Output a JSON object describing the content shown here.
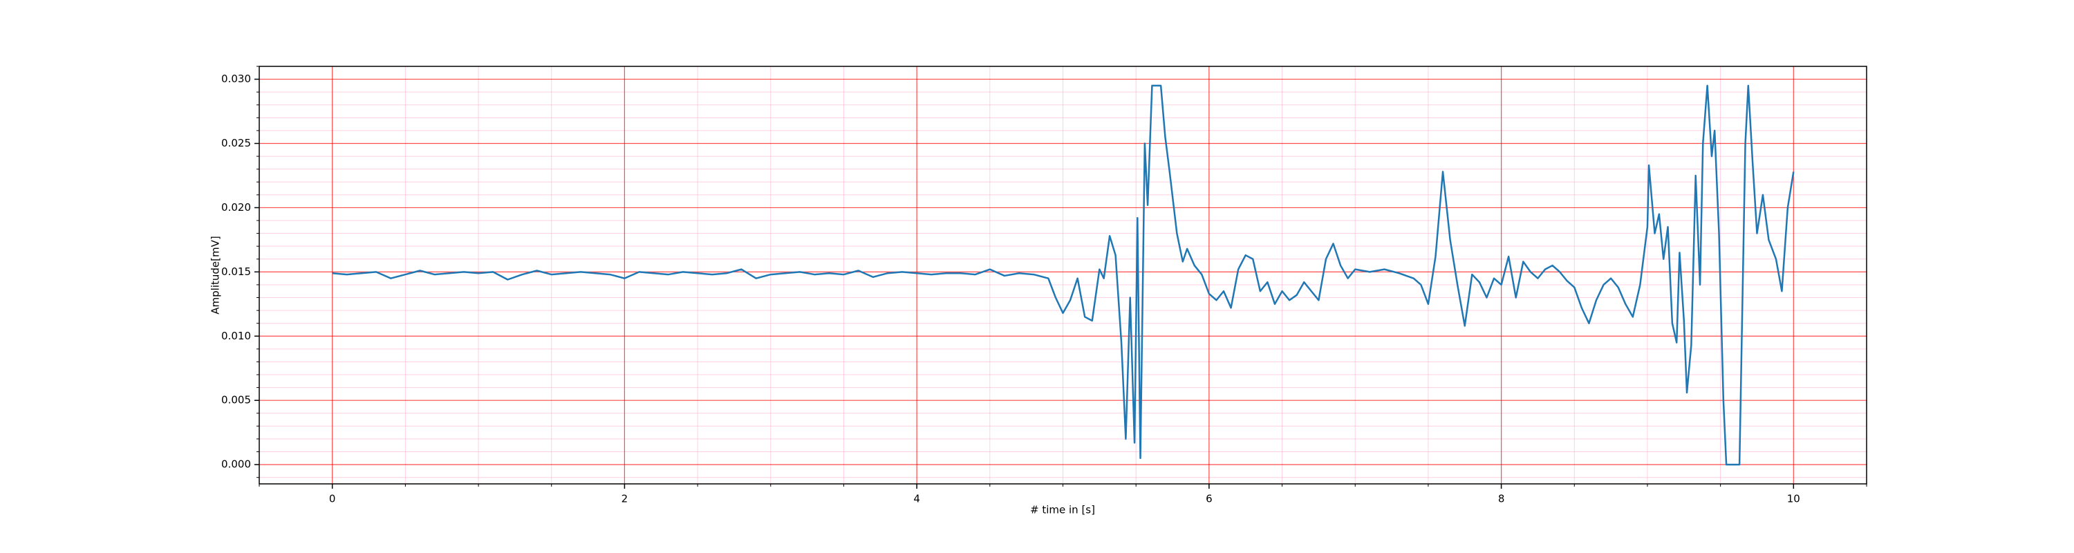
{
  "chart_data": {
    "type": "line",
    "xlabel": "# time in [s]",
    "ylabel": "Amplitude[mV]",
    "xlim": [
      -0.5,
      10.5
    ],
    "ylim": [
      -0.0015,
      0.031
    ],
    "xticks": [
      0,
      2,
      4,
      6,
      8,
      10
    ],
    "yticks": [
      {
        "value": 0,
        "label": "0.000"
      },
      {
        "value": 0.005,
        "label": "0.005"
      },
      {
        "value": 0.01,
        "label": "0.010"
      },
      {
        "value": 0.015,
        "label": "0.015"
      },
      {
        "value": 0.02,
        "label": "0.020"
      },
      {
        "value": 0.025,
        "label": "0.025"
      },
      {
        "value": 0.03,
        "label": "0.030"
      }
    ],
    "minor_xticks": [
      -0.5,
      0.5,
      1,
      1.5,
      2.5,
      3,
      3.5,
      4.5,
      5,
      5.5,
      6.5,
      7,
      7.5,
      8.5,
      9,
      9.5,
      10.5
    ],
    "minor_yticks": [
      -0.001,
      0.001,
      0.002,
      0.003,
      0.004,
      0.006,
      0.007,
      0.008,
      0.009,
      0.011,
      0.012,
      0.013,
      0.014,
      0.016,
      0.017,
      0.018,
      0.019,
      0.021,
      0.022,
      0.023,
      0.024,
      0.026,
      0.027,
      0.028,
      0.029,
      0.031
    ],
    "grid": true,
    "major_grid_color": "#ff0000",
    "minor_grid_color": "#ffb0d0",
    "series": [
      {
        "color": "#1f77b4",
        "x": [
          0,
          0.1,
          0.2,
          0.3,
          0.4,
          0.5,
          0.6,
          0.7,
          0.8,
          0.9,
          1.0,
          1.1,
          1.2,
          1.3,
          1.4,
          1.5,
          1.6,
          1.7,
          1.8,
          1.9,
          2.0,
          2.1,
          2.2,
          2.3,
          2.4,
          2.5,
          2.6,
          2.7,
          2.8,
          2.9,
          3.0,
          3.1,
          3.2,
          3.3,
          3.4,
          3.5,
          3.6,
          3.7,
          3.8,
          3.9,
          4.0,
          4.1,
          4.2,
          4.3,
          4.4,
          4.5,
          4.6,
          4.7,
          4.8,
          4.9,
          4.95,
          5.0,
          5.05,
          5.1,
          5.15,
          5.2,
          5.25,
          5.28,
          5.32,
          5.36,
          5.4,
          5.43,
          5.46,
          5.49,
          5.51,
          5.53,
          5.56,
          5.58,
          5.61,
          5.67,
          5.7,
          5.73,
          5.78,
          5.82,
          5.85,
          5.9,
          5.95,
          6.0,
          6.05,
          6.1,
          6.15,
          6.2,
          6.25,
          6.3,
          6.35,
          6.4,
          6.45,
          6.5,
          6.55,
          6.6,
          6.65,
          6.7,
          6.75,
          6.8,
          6.85,
          6.9,
          6.95,
          7.0,
          7.1,
          7.2,
          7.3,
          7.4,
          7.45,
          7.5,
          7.55,
          7.6,
          7.65,
          7.7,
          7.75,
          7.8,
          7.85,
          7.9,
          7.95,
          8.0,
          8.05,
          8.1,
          8.15,
          8.2,
          8.25,
          8.3,
          8.35,
          8.4,
          8.45,
          8.5,
          8.55,
          8.6,
          8.65,
          8.7,
          8.75,
          8.8,
          8.85,
          8.9,
          8.95,
          9.0,
          9.01,
          9.05,
          9.08,
          9.11,
          9.14,
          9.17,
          9.2,
          9.22,
          9.25,
          9.27,
          9.3,
          9.33,
          9.36,
          9.38,
          9.41,
          9.44,
          9.46,
          9.49,
          9.52,
          9.54,
          9.63,
          9.67,
          9.69,
          9.72,
          9.75,
          9.79,
          9.83,
          9.88,
          9.92,
          9.96,
          10.0
        ],
        "values": [
          0.0149,
          0.0148,
          0.0149,
          0.015,
          0.0145,
          0.0148,
          0.0151,
          0.0148,
          0.0149,
          0.015,
          0.0149,
          0.015,
          0.0144,
          0.0148,
          0.0151,
          0.0148,
          0.0149,
          0.015,
          0.0149,
          0.0148,
          0.0145,
          0.015,
          0.0149,
          0.0148,
          0.015,
          0.0149,
          0.0148,
          0.0149,
          0.0152,
          0.0145,
          0.0148,
          0.0149,
          0.015,
          0.0148,
          0.0149,
          0.0148,
          0.0151,
          0.0146,
          0.0149,
          0.015,
          0.0149,
          0.0148,
          0.0149,
          0.0149,
          0.0148,
          0.0152,
          0.0147,
          0.0149,
          0.0148,
          0.0145,
          0.013,
          0.0118,
          0.0128,
          0.0145,
          0.0115,
          0.0112,
          0.0152,
          0.0145,
          0.0178,
          0.0163,
          0.0095,
          0.002,
          0.013,
          0.0017,
          0.0192,
          0.0005,
          0.025,
          0.0202,
          0.0295,
          0.0295,
          0.0255,
          0.0228,
          0.018,
          0.0158,
          0.0168,
          0.0155,
          0.0148,
          0.0133,
          0.0128,
          0.0135,
          0.0122,
          0.0152,
          0.0163,
          0.016,
          0.0135,
          0.0142,
          0.0125,
          0.0135,
          0.0128,
          0.0132,
          0.0142,
          0.0135,
          0.0128,
          0.016,
          0.0172,
          0.0155,
          0.0145,
          0.0152,
          0.015,
          0.0152,
          0.0149,
          0.0145,
          0.014,
          0.0125,
          0.0162,
          0.0228,
          0.0175,
          0.014,
          0.0108,
          0.0148,
          0.0142,
          0.013,
          0.0145,
          0.014,
          0.0162,
          0.013,
          0.0158,
          0.015,
          0.0145,
          0.0152,
          0.0155,
          0.015,
          0.0143,
          0.0138,
          0.0122,
          0.011,
          0.0128,
          0.014,
          0.0145,
          0.0138,
          0.0125,
          0.0115,
          0.014,
          0.0185,
          0.0233,
          0.018,
          0.0195,
          0.016,
          0.0185,
          0.011,
          0.0095,
          0.0165,
          0.0112,
          0.0056,
          0.0093,
          0.0225,
          0.014,
          0.025,
          0.0295,
          0.024,
          0.026,
          0.018,
          0.005,
          0,
          0,
          0.025,
          0.0295,
          0.0235,
          0.018,
          0.021,
          0.0175,
          0.016,
          0.0135,
          0.02,
          0.0228
        ]
      }
    ]
  }
}
